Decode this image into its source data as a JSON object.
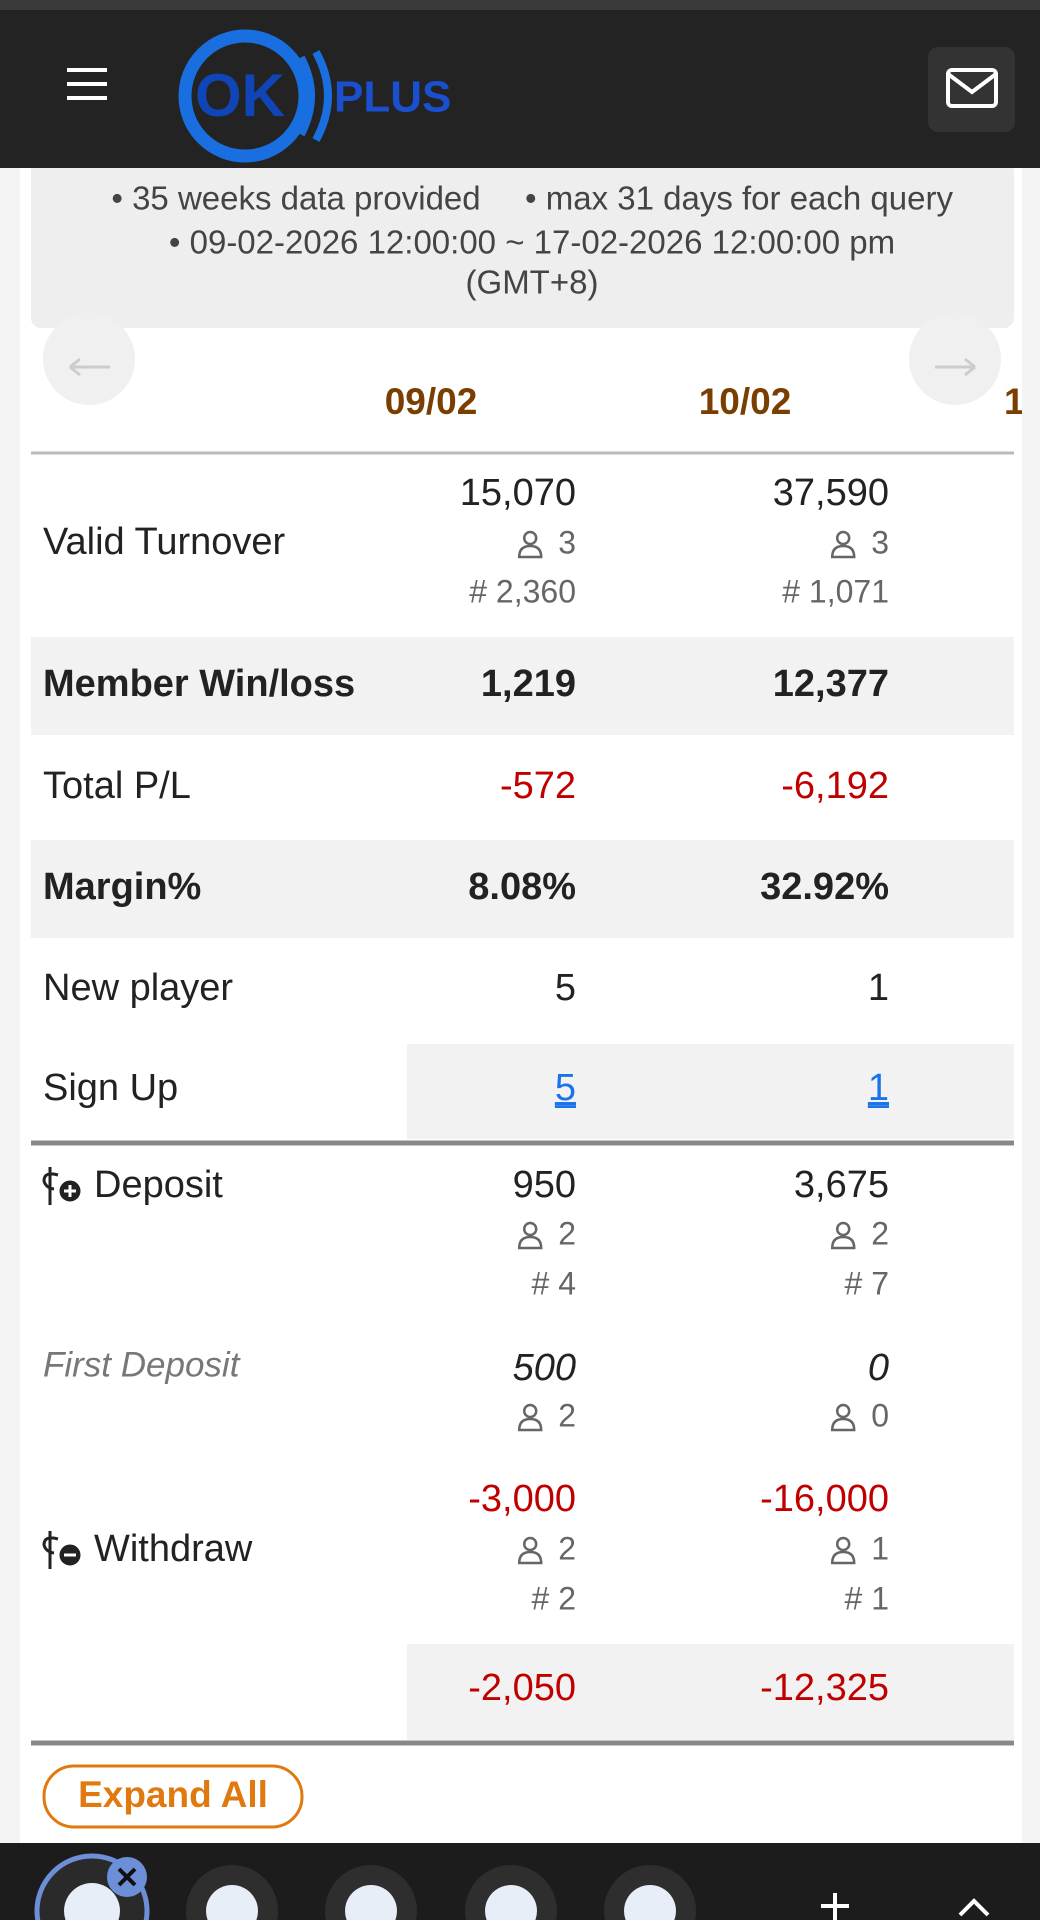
{
  "header": {
    "logo": "OK",
    "logo_suffix": "PLUS"
  },
  "notes": [
    "• 35 weeks data provided",
    "• max 31 days for each query",
    "• 09-02-2026 12:00:00 ~ 17-02-2026 12:00:00 pm",
    "(GMT+8)"
  ],
  "table": {
    "columns": [
      "09/02",
      "10/02",
      "1"
    ],
    "rows": [
      {
        "label": "Valid Turnover",
        "cells": [
          {
            "value": "15,070",
            "players": "3",
            "count": "# 2,360"
          },
          {
            "value": "37,590",
            "players": "3",
            "count": "# 1,071"
          }
        ]
      },
      {
        "label": "Member Win/loss",
        "cells": [
          {
            "value": "1,219"
          },
          {
            "value": "12,377"
          }
        ]
      },
      {
        "label": "Total P/L",
        "cells": [
          {
            "value": "-572"
          },
          {
            "value": "-6,192"
          }
        ]
      },
      {
        "label": "Margin%",
        "cells": [
          {
            "value": "8.08%"
          },
          {
            "value": "32.92%"
          }
        ]
      },
      {
        "label": "New player",
        "cells": [
          {
            "value": "5"
          },
          {
            "value": "1"
          }
        ]
      },
      {
        "label": "Sign Up",
        "cells": [
          {
            "value": "5"
          },
          {
            "value": "1"
          }
        ]
      },
      {
        "label": "Deposit",
        "cells": [
          {
            "value": "950",
            "players": "2",
            "count": "# 4"
          },
          {
            "value": "3,675",
            "players": "2",
            "count": "# 7"
          }
        ]
      },
      {
        "label": "First Deposit",
        "cells": [
          {
            "value": "500",
            "players": "2"
          },
          {
            "value": "0",
            "players": "0"
          }
        ]
      },
      {
        "label": "Withdraw",
        "cells": [
          {
            "value": "-3,000",
            "players": "2",
            "count": "# 2"
          },
          {
            "value": "-16,000",
            "players": "1",
            "count": "# 1"
          }
        ]
      },
      {
        "cells": [
          {
            "value": "-2,050"
          },
          {
            "value": "-12,325"
          }
        ]
      }
    ]
  },
  "expand_button": "Expand All"
}
